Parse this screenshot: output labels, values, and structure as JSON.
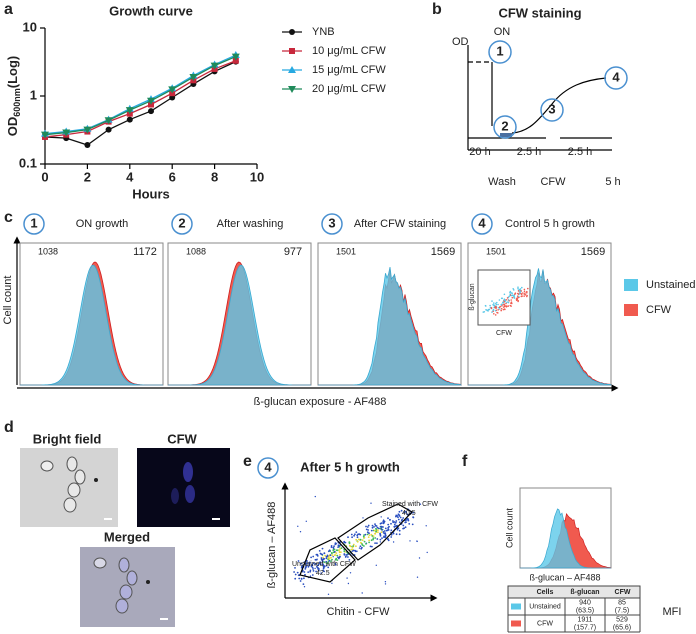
{
  "panel_labels": [
    "a",
    "b",
    "c",
    "d",
    "e",
    "f"
  ],
  "chart_data": [
    {
      "type": "line",
      "title": "Growth curve",
      "x_label": "Hours",
      "y_label": "OD",
      "y_label_sub": "600nm",
      "y_label_suffix": "(Log)",
      "x": [
        0,
        1,
        2,
        3,
        4,
        5,
        6,
        7,
        8,
        9
      ],
      "series": [
        {
          "name": "YNB",
          "color": "#111111",
          "marker": "circle",
          "values": [
            0.25,
            0.24,
            0.19,
            0.32,
            0.45,
            0.6,
            0.95,
            1.5,
            2.3,
            3.2
          ]
        },
        {
          "name": "10 μg/mL CFW",
          "color": "#c8283c",
          "marker": "square",
          "values": [
            0.25,
            0.27,
            0.3,
            0.42,
            0.55,
            0.75,
            1.1,
            1.7,
            2.5,
            3.3
          ]
        },
        {
          "name": "15 μg/mL CFW",
          "color": "#27a9e1",
          "marker": "triangle-up",
          "values": [
            0.28,
            0.3,
            0.33,
            0.45,
            0.65,
            0.9,
            1.3,
            2.0,
            2.9,
            4.0
          ]
        },
        {
          "name": "20 μg/mL CFW",
          "color": "#1f8a5a",
          "marker": "triangle-down",
          "values": [
            0.27,
            0.29,
            0.32,
            0.44,
            0.62,
            0.85,
            1.25,
            1.9,
            2.8,
            3.8
          ]
        }
      ],
      "xlim": [
        0,
        10
      ],
      "xticks": [
        0,
        2,
        4,
        6,
        8,
        10
      ],
      "ylim": [
        0.1,
        10
      ],
      "yticks": [
        0.1,
        1,
        10
      ],
      "log_y": true,
      "legend": "right"
    }
  ],
  "diagram_b": {
    "title": "CFW staining",
    "axis_label": "OD",
    "on_label": "ON",
    "steps": [
      "1",
      "2",
      "3",
      "4"
    ],
    "durations": [
      "20 h",
      "2.5 h",
      "2.5 h"
    ],
    "phases": [
      "Wash",
      "CFW",
      "5 h"
    ]
  },
  "panel_c": {
    "y_label": "Cell count",
    "x_label": "ß-glucan exposure - AF488",
    "plots": [
      {
        "step": "1",
        "title": "ON growth",
        "unstained": "1038",
        "cfw": "1172"
      },
      {
        "step": "2",
        "title": "After washing",
        "unstained": "1088",
        "cfw": "977"
      },
      {
        "step": "3",
        "title": "After CFW staining",
        "unstained": "1501",
        "cfw": "1569"
      },
      {
        "step": "4",
        "title": "Control 5 h growth",
        "unstained": "1501",
        "cfw": "1569"
      }
    ],
    "legend": [
      {
        "name": "Unstained",
        "color": "#5bc8e8"
      },
      {
        "name": "CFW",
        "color": "#f05a4f"
      }
    ],
    "inset": {
      "y_label": "ß-glucan",
      "x_label": "CFW"
    }
  },
  "panel_d": {
    "images": [
      "Bright field",
      "CFW",
      "Merged"
    ]
  },
  "panel_e": {
    "step": "4",
    "title": "After 5 h growth",
    "gates": [
      {
        "label": "Stained with CFW",
        "value": "40.5"
      },
      {
        "label": "Unstained with CFW",
        "value": "42.5"
      }
    ],
    "x_label": "Chitin - CFW",
    "y_label": "ß-glucan – AF488"
  },
  "panel_f": {
    "y_label": "Cell count",
    "x_label": "ß-glucan – AF488",
    "table": {
      "header": [
        "Cells",
        "ß-glucan",
        "CFW"
      ],
      "rows": [
        {
          "name": "Unstained",
          "beta_glucan": "940",
          "beta_glucan_sd": "(63.5)",
          "cfw": "85",
          "cfw_sd": "(7.5)"
        },
        {
          "name": "CFW",
          "beta_glucan": "1911",
          "beta_glucan_sd": "(157.7)",
          "cfw": "529",
          "cfw_sd": "(65.6)"
        }
      ]
    },
    "note": "MFI"
  }
}
